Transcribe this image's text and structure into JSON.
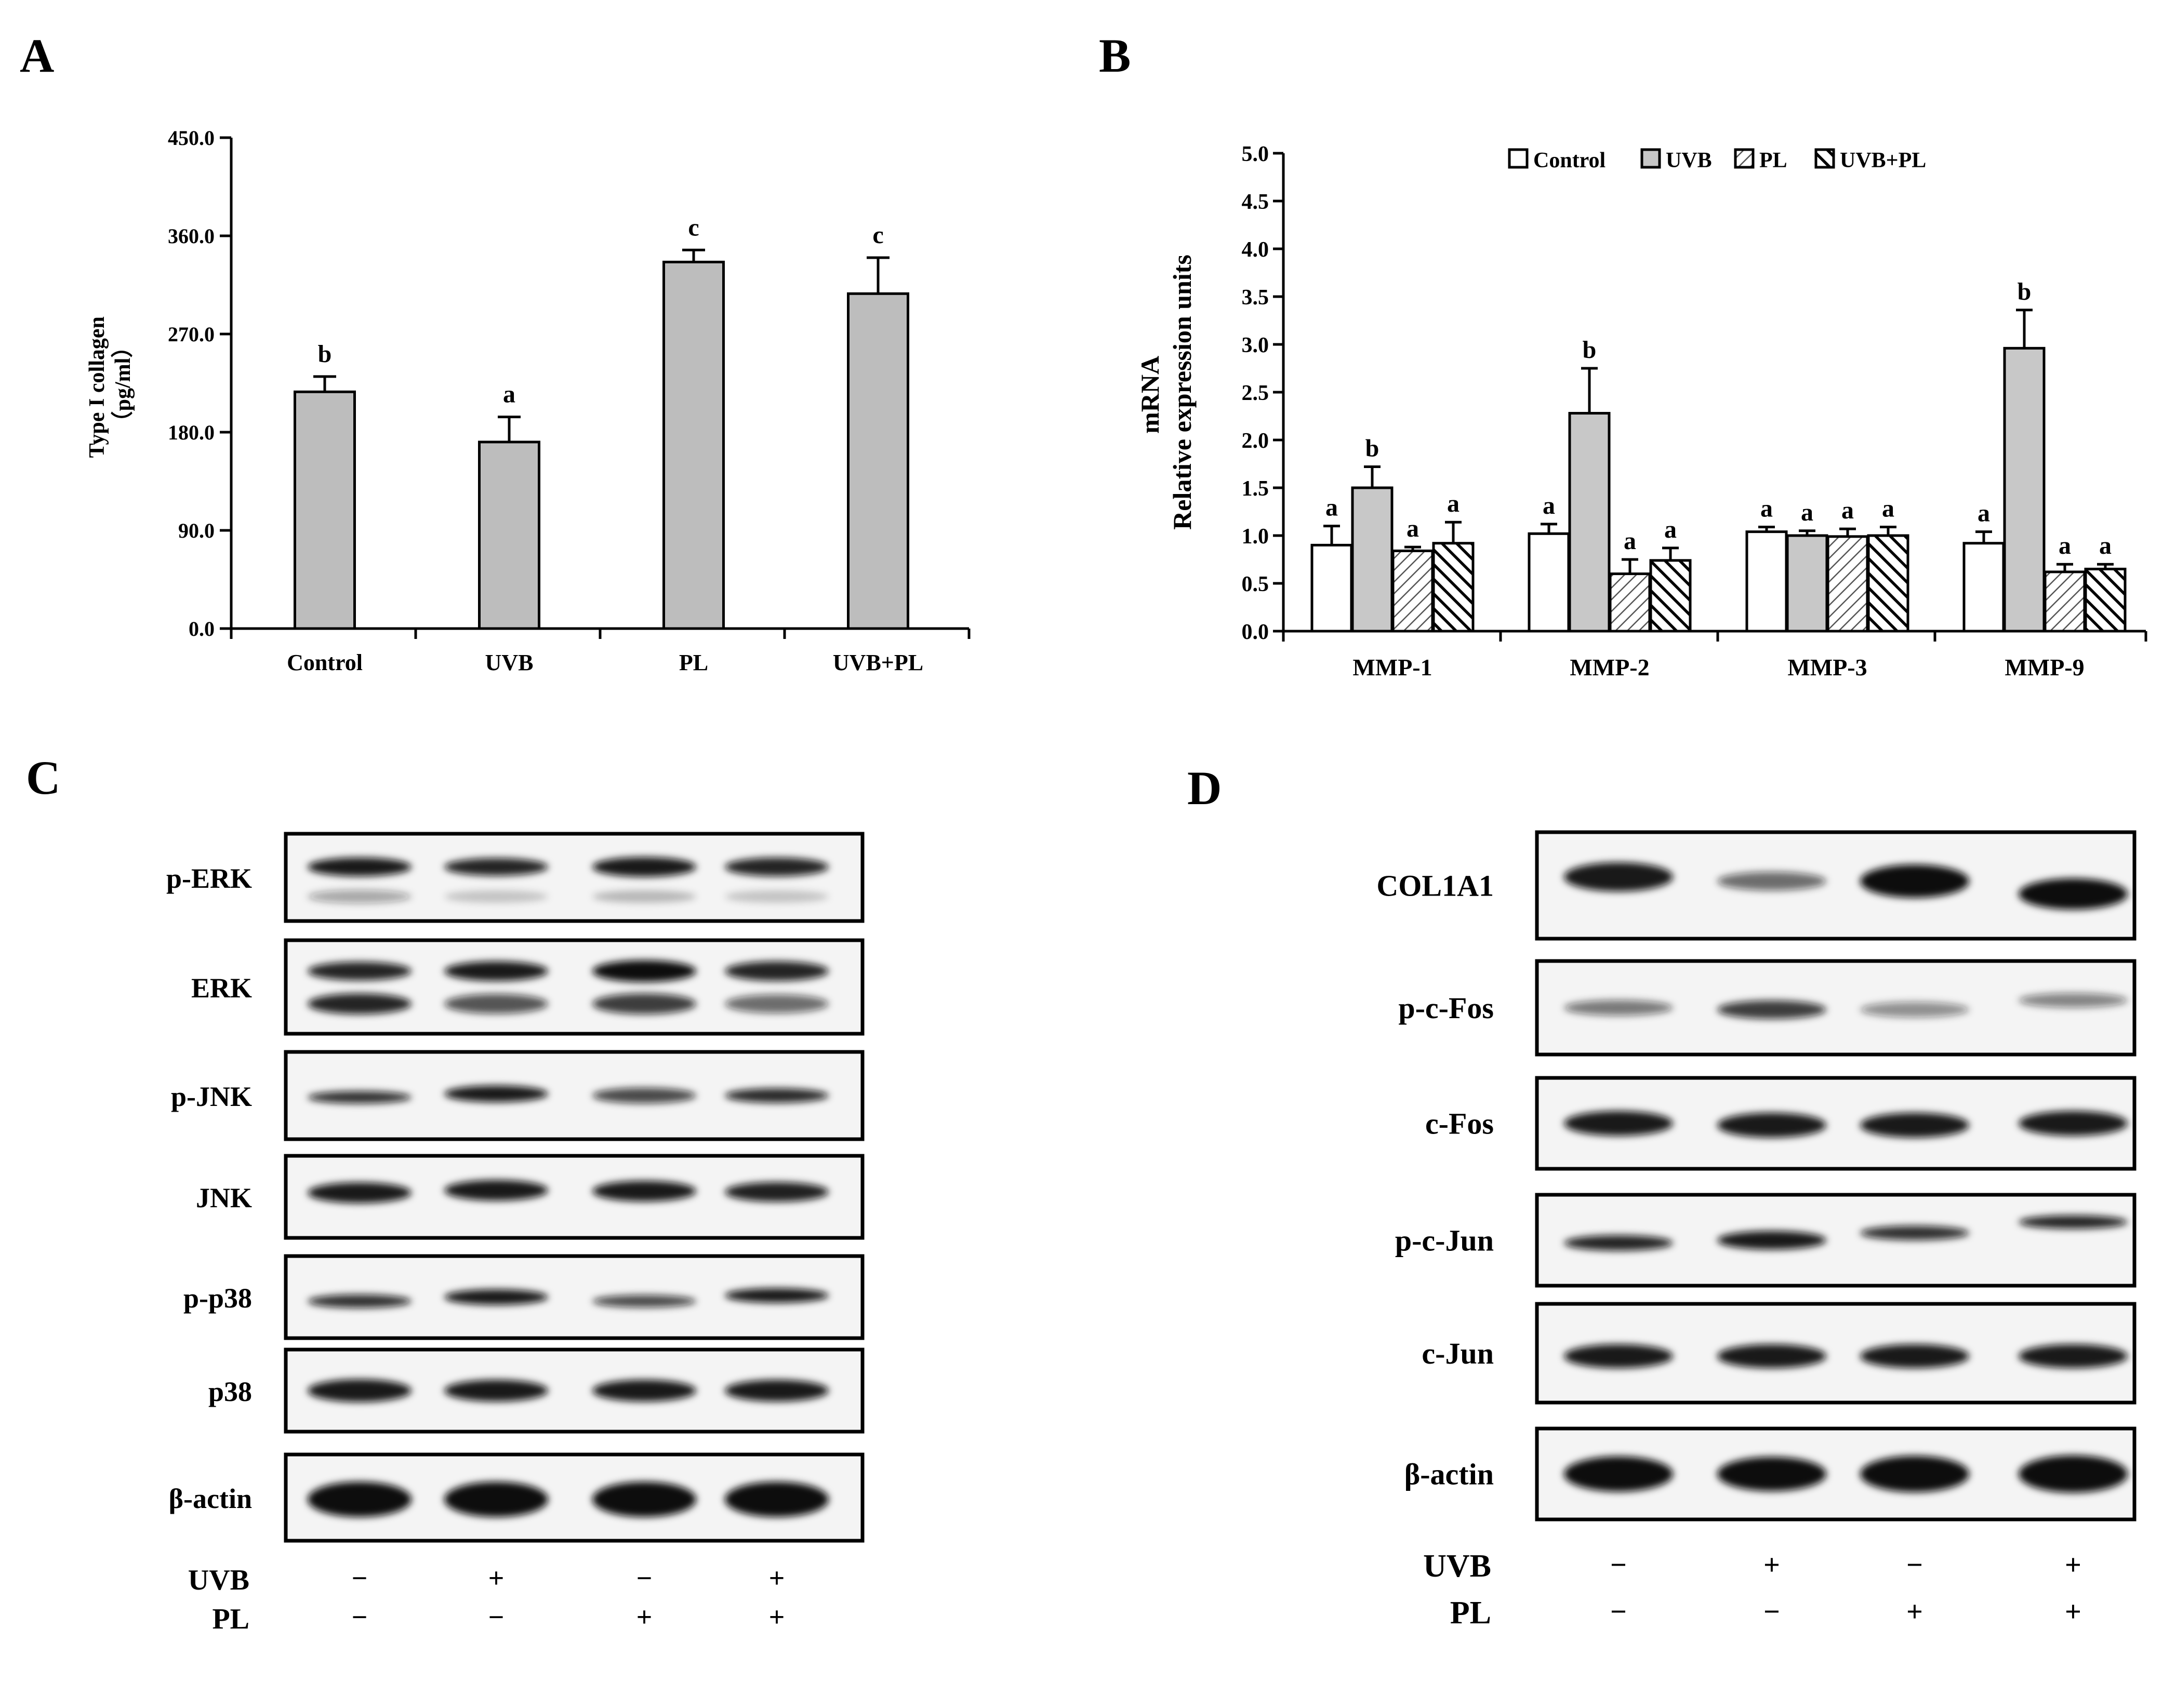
{
  "panels": {
    "A": {
      "letter": "A",
      "chart_data": {
        "type": "bar",
        "ylabel_line1": "Type I collagen",
        "ylabel_line2": "（pg/ml）",
        "ylim": [
          0,
          450
        ],
        "yticks": [
          "0.0",
          "90.0",
          "180.0",
          "270.0",
          "360.0",
          "450.0"
        ],
        "categories": [
          "Control",
          "UVB",
          "PL",
          "UVB+PL"
        ],
        "values": [
          217,
          171,
          336,
          307
        ],
        "errors": [
          14,
          23,
          11,
          33
        ],
        "significance": [
          "b",
          "a",
          "c",
          "c"
        ],
        "bar_color": "#bdbdbd"
      }
    },
    "B": {
      "letter": "B",
      "chart_data": {
        "type": "bar",
        "ylabel_line1": "mRNA",
        "ylabel_line2": "Relative expression units",
        "ylim": [
          0,
          5
        ],
        "yticks": [
          "0.0",
          "0.5",
          "1.0",
          "1.5",
          "2.0",
          "2.5",
          "3.0",
          "3.5",
          "4.0",
          "4.5",
          "5.0"
        ],
        "categories": [
          "MMP-1",
          "MMP-2",
          "MMP-3",
          "MMP-9"
        ],
        "legend_position": "top",
        "series": [
          {
            "name": "Control",
            "fill": "white",
            "values": [
              0.9,
              1.02,
              1.04,
              0.92
            ],
            "errors": [
              0.2,
              0.1,
              0.05,
              0.12
            ],
            "letters": [
              "a",
              "a",
              "a",
              "a"
            ]
          },
          {
            "name": "UVB",
            "fill": "gray",
            "values": [
              1.5,
              2.28,
              1.0,
              2.96
            ],
            "errors": [
              0.22,
              0.47,
              0.05,
              0.4
            ],
            "letters": [
              "b",
              "b",
              "a",
              "b"
            ]
          },
          {
            "name": "PL",
            "fill": "light-hatch",
            "values": [
              0.84,
              0.6,
              0.99,
              0.62
            ],
            "errors": [
              0.04,
              0.15,
              0.08,
              0.08
            ],
            "letters": [
              "a",
              "a",
              "a",
              "a"
            ]
          },
          {
            "name": "UVB+PL",
            "fill": "dark-hatch",
            "values": [
              0.92,
              0.74,
              1.0,
              0.65
            ],
            "errors": [
              0.22,
              0.13,
              0.09,
              0.05
            ],
            "letters": [
              "a",
              "a",
              "a",
              "a"
            ]
          }
        ]
      }
    },
    "C": {
      "letter": "C",
      "blots": [
        "p-ERK",
        "ERK",
        "p-JNK",
        "JNK",
        "p-p38",
        "p38",
        "β-actin"
      ],
      "treatments": [
        {
          "label": "UVB",
          "signs": [
            "−",
            "+",
            "−",
            "+"
          ]
        },
        {
          "label": "PL",
          "signs": [
            "−",
            "−",
            "+",
            "+"
          ]
        }
      ]
    },
    "D": {
      "letter": "D",
      "blots": [
        "COL1A1",
        "p-c-Fos",
        "c-Fos",
        "p-c-Jun",
        "c-Jun",
        "β-actin"
      ],
      "treatments": [
        {
          "label": "UVB",
          "signs": [
            "−",
            "+",
            "−",
            "+"
          ]
        },
        {
          "label": "PL",
          "signs": [
            "−",
            "−",
            "+",
            "+"
          ]
        }
      ]
    }
  }
}
